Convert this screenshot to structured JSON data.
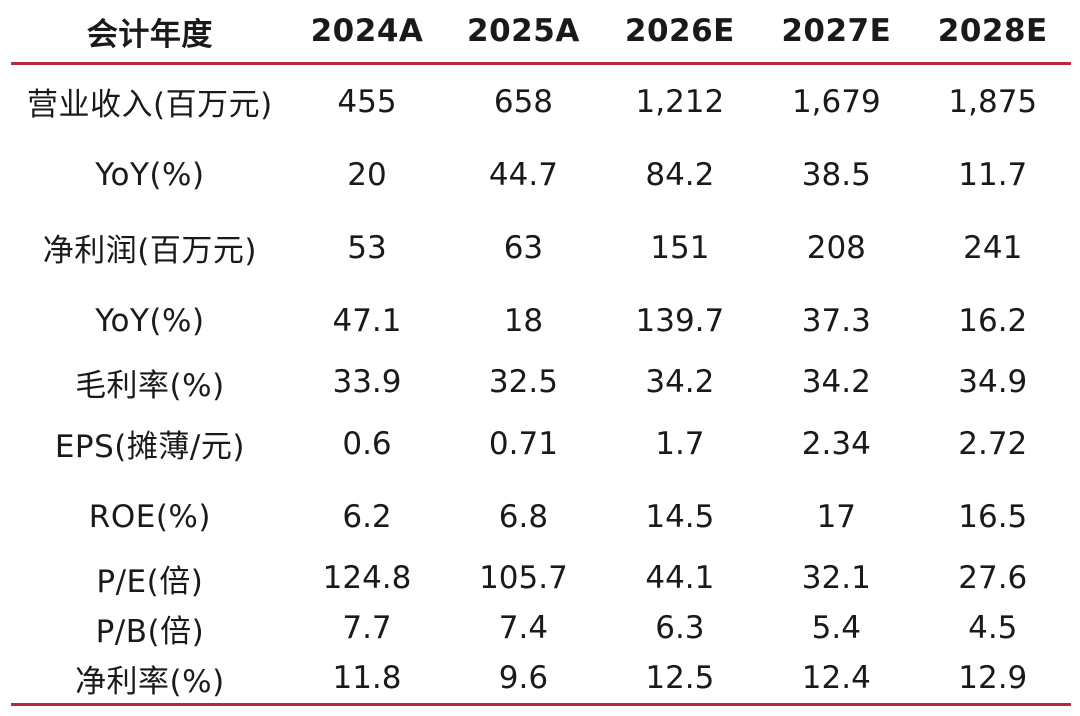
{
  "header": [
    "会计年度",
    "2024A",
    "2025A",
    "2026E",
    "2027E",
    "2028E"
  ],
  "rows": [
    {
      "label": "营业收入(百万元)",
      "values": [
        "455",
        "658",
        "1,212",
        "1,679",
        "1,875"
      ]
    },
    {
      "label": "YoY(%)",
      "values": [
        "20",
        "44.7",
        "84.2",
        "38.5",
        "11.7"
      ]
    },
    {
      "label": "净利润(百万元)",
      "values": [
        "53",
        "63",
        "151",
        "208",
        "241"
      ]
    },
    {
      "label": "YoY(%)",
      "values": [
        "47.1",
        "18",
        "139.7",
        "37.3",
        "16.2"
      ]
    },
    {
      "label": "毛利率(%)",
      "values": [
        "33.9",
        "32.5",
        "34.2",
        "34.2",
        "34.9"
      ]
    },
    {
      "label": "EPS(摊薄/元)",
      "values": [
        "0.6",
        "0.71",
        "1.7",
        "2.34",
        "2.72"
      ]
    },
    {
      "label": "ROE(%)",
      "values": [
        "6.2",
        "6.8",
        "14.5",
        "17",
        "16.5"
      ]
    },
    {
      "label": "P/E(倍)",
      "values": [
        "124.8",
        "105.7",
        "44.1",
        "32.1",
        "27.6"
      ]
    },
    {
      "label": "P/B(倍)",
      "values": [
        "7.7",
        "7.4",
        "6.3",
        "5.4",
        "4.5"
      ]
    },
    {
      "label": "净利率(%)",
      "values": [
        "11.8",
        "9.6",
        "12.5",
        "12.4",
        "12.9"
      ]
    }
  ],
  "colors": {
    "rule": "#b8283a",
    "text": "#1a1a1a"
  }
}
